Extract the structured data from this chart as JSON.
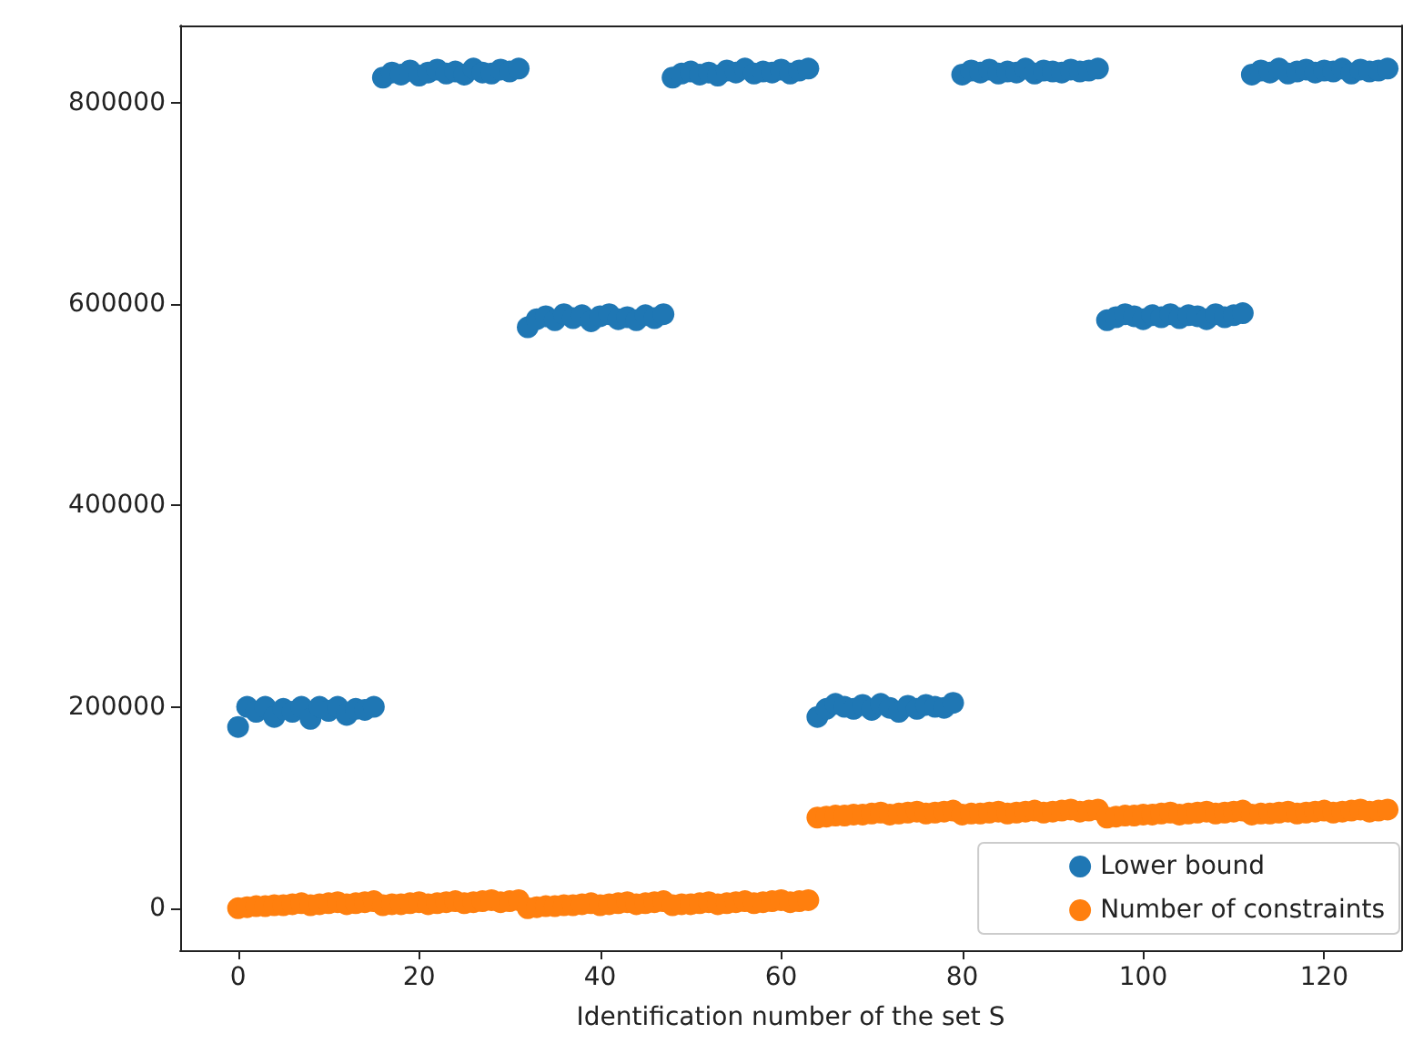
{
  "chart_data": {
    "type": "scatter",
    "xlabel": "Identification number of the set S",
    "x": [
      0,
      1,
      2,
      3,
      4,
      5,
      6,
      7,
      8,
      9,
      10,
      11,
      12,
      13,
      14,
      15,
      16,
      17,
      18,
      19,
      20,
      21,
      22,
      23,
      24,
      25,
      26,
      27,
      28,
      29,
      30,
      31,
      32,
      33,
      34,
      35,
      36,
      37,
      38,
      39,
      40,
      41,
      42,
      43,
      44,
      45,
      46,
      47,
      48,
      49,
      50,
      51,
      52,
      53,
      54,
      55,
      56,
      57,
      58,
      59,
      60,
      61,
      62,
      63,
      64,
      65,
      66,
      67,
      68,
      69,
      70,
      71,
      72,
      73,
      74,
      75,
      76,
      77,
      78,
      79,
      80,
      81,
      82,
      83,
      84,
      85,
      86,
      87,
      88,
      89,
      90,
      91,
      92,
      93,
      94,
      95,
      96,
      97,
      98,
      99,
      100,
      101,
      102,
      103,
      104,
      105,
      106,
      107,
      108,
      109,
      110,
      111,
      112,
      113,
      114,
      115,
      116,
      117,
      118,
      119,
      120,
      121,
      122,
      123,
      124,
      125,
      126,
      127
    ],
    "series": [
      {
        "name": "Lower bound",
        "color": "#1f77b4",
        "values": [
          180000,
          200000,
          195000,
          200000,
          190000,
          198000,
          195000,
          200000,
          188000,
          200000,
          196000,
          200000,
          192000,
          198000,
          197000,
          200000,
          825000,
          830000,
          828000,
          832000,
          827000,
          830000,
          833000,
          829000,
          831000,
          828000,
          834000,
          830000,
          829000,
          833000,
          831000,
          834000,
          577000,
          585000,
          588000,
          584000,
          590000,
          586000,
          589000,
          583000,
          588000,
          590000,
          585000,
          587000,
          584000,
          589000,
          586000,
          590000,
          825000,
          829000,
          831000,
          828000,
          830000,
          827000,
          832000,
          830000,
          834000,
          829000,
          831000,
          830000,
          833000,
          829000,
          832000,
          834000,
          190000,
          198000,
          203000,
          200000,
          198000,
          202000,
          197000,
          203000,
          199000,
          195000,
          201000,
          198000,
          202000,
          200000,
          199000,
          204000,
          828000,
          832000,
          830000,
          833000,
          829000,
          831000,
          830000,
          834000,
          829000,
          832000,
          831000,
          830000,
          833000,
          831000,
          832000,
          834000,
          584000,
          587000,
          590000,
          588000,
          585000,
          589000,
          587000,
          590000,
          586000,
          589000,
          588000,
          585000,
          590000,
          587000,
          589000,
          591000,
          828000,
          832000,
          830000,
          834000,
          829000,
          831000,
          833000,
          830000,
          832000,
          831000,
          834000,
          829000,
          833000,
          831000,
          832000,
          834000
        ]
      },
      {
        "name": "Number of constraints",
        "color": "#ff7f0e",
        "values": [
          0,
          1000,
          2000,
          2000,
          3000,
          3000,
          4000,
          5000,
          3000,
          4000,
          5000,
          6000,
          4000,
          5000,
          6000,
          7000,
          3000,
          4000,
          4000,
          5000,
          6000,
          4000,
          5000,
          6000,
          7000,
          5000,
          6000,
          7000,
          8000,
          6000,
          7000,
          8000,
          0,
          1000,
          2000,
          2000,
          3000,
          3000,
          4000,
          5000,
          3000,
          4000,
          5000,
          6000,
          4000,
          5000,
          6000,
          7000,
          3000,
          4000,
          4000,
          5000,
          6000,
          4000,
          5000,
          6000,
          7000,
          5000,
          6000,
          7000,
          8000,
          6000,
          7000,
          8000,
          90000,
          91000,
          92000,
          92000,
          93000,
          93000,
          94000,
          95000,
          93000,
          94000,
          95000,
          96000,
          94000,
          95000,
          96000,
          97000,
          93000,
          94000,
          94000,
          95000,
          96000,
          94000,
          95000,
          96000,
          97000,
          95000,
          96000,
          97000,
          98000,
          96000,
          97000,
          98000,
          90000,
          91000,
          92000,
          92000,
          93000,
          93000,
          94000,
          95000,
          93000,
          94000,
          95000,
          96000,
          94000,
          95000,
          96000,
          97000,
          93000,
          94000,
          94000,
          95000,
          96000,
          94000,
          95000,
          96000,
          97000,
          95000,
          96000,
          97000,
          98000,
          96000,
          97000,
          98000
        ]
      }
    ],
    "xlim": [
      -6.4,
      128.5
    ],
    "xticks": [
      0,
      20,
      40,
      60,
      80,
      100,
      120
    ],
    "ylim": [
      -41750,
      876750
    ],
    "yticks": [
      0,
      200000,
      400000,
      600000,
      800000
    ],
    "marker": "circle",
    "legend": "bottom right",
    "grid": false
  }
}
